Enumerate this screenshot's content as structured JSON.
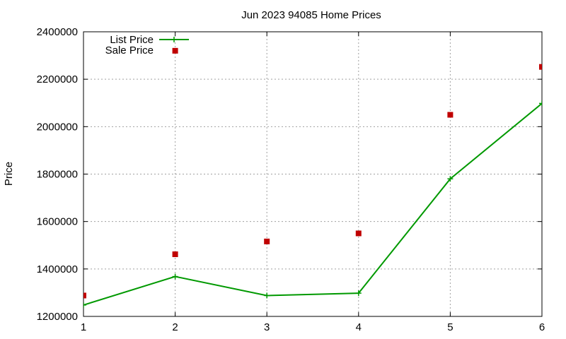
{
  "chart_data": {
    "type": "line",
    "title": "Jun 2023 94085 Home Prices",
    "xlabel": "",
    "ylabel": "Price",
    "x": [
      1,
      2,
      3,
      4,
      5,
      6
    ],
    "xlim": [
      1,
      6
    ],
    "ylim": [
      1200000,
      2400000
    ],
    "x_ticks": [
      "1",
      "2",
      "3",
      "4",
      "5",
      "6"
    ],
    "y_ticks": [
      "1200000",
      "1400000",
      "1600000",
      "1800000",
      "2000000",
      "2200000",
      "2400000"
    ],
    "grid": true,
    "legend_position": "top-left",
    "series": [
      {
        "name": "List Price",
        "style": "line+cross",
        "color": "#009900",
        "values": [
          1248000,
          1368000,
          1288000,
          1298000,
          1780000,
          2098000
        ]
      },
      {
        "name": "Sale Price",
        "style": "square-markers",
        "color": "#c00000",
        "values": [
          1288000,
          1462000,
          1516000,
          1550000,
          2050000,
          2252000,
          2320000
        ],
        "x": [
          1,
          2,
          3,
          4,
          5,
          6,
          2
        ]
      }
    ]
  }
}
